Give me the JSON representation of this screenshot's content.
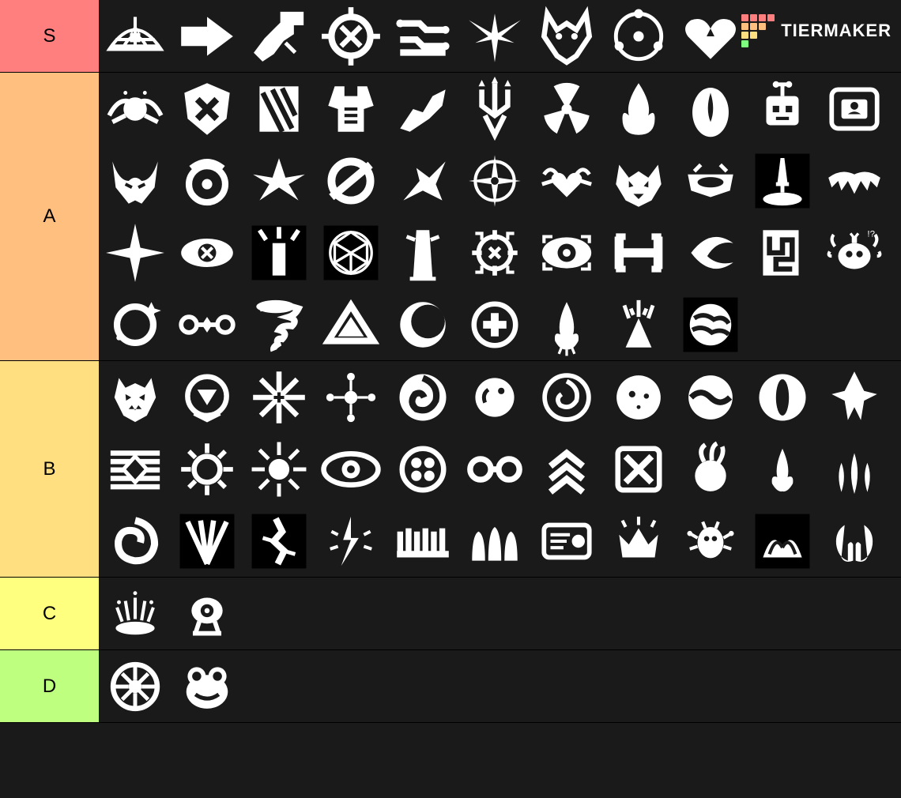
{
  "watermark": {
    "text": "TIERMAKER"
  },
  "wm_colors": [
    "#ff7f7f",
    "#ff7f7f",
    "#ff7f7f",
    "#ff7f7f",
    "#ffbf7f",
    "#ffbf7f",
    "#ffbf7f",
    "#1a1a1a",
    "#ffdf7f",
    "#ffdf7f",
    "#1a1a1a",
    "#1a1a1a",
    "#7fff7f",
    "#1a1a1a",
    "#1a1a1a",
    "#1a1a1a"
  ],
  "tiers": [
    {
      "label": "S",
      "color": "#ff7f7f",
      "items": [
        "dome-lock",
        "arrow-right",
        "turret",
        "crosshair-x",
        "circuit",
        "winged-crest",
        "fox-mask",
        "orbit-node",
        "heart-spark"
      ]
    },
    {
      "label": "A",
      "color": "#ffbf7f",
      "items": [
        "winged-orb",
        "shield-x",
        "slash-panel",
        "torso-armor",
        "beast-leap",
        "trident-crest",
        "radiation",
        "flame",
        "oval-flame",
        "robot-head",
        "id-card",
        "horned-mask",
        "halo-ring",
        "wing-blade",
        "ring-slash",
        "shatter",
        "compass-star",
        "heart-wings",
        "demon-face",
        "visor",
        "sword-pool",
        "maw",
        "spark-star",
        "eye-x",
        "pillar-burst",
        "geo-sphere",
        "monolith",
        "target-x",
        "eye-shield",
        "bracket-line",
        "crescent-blade",
        "maze-block",
        "alarm-bot",
        "ring-sparkle",
        "link-diamond",
        "tornado",
        "triangle",
        "crescent-ring",
        "plus-circle",
        "flame-drop",
        "eruption",
        "globe-swirl"
      ]
    },
    {
      "label": "B",
      "color": "#ffdf7f",
      "items": [
        "oni-face",
        "down-triangle",
        "snowflake-plus",
        "dot-orbit",
        "swirl-dark",
        "orb-glow",
        "spiral-ring",
        "moon-face",
        "wave-circle",
        "eye-slit",
        "crest-point",
        "stripes-gem",
        "burst-ring",
        "sun-ray",
        "eye-wide",
        "quad-circle",
        "link-chain",
        "chevrons-up",
        "x-box",
        "fireball",
        "flame-small",
        "tri-flame",
        "swirl-ring",
        "beam-spread",
        "crack",
        "spark-bolt",
        "comb",
        "wave-pillars",
        "tech-panel",
        "crown-burst",
        "bug-signal",
        "wave-banner",
        "twin-heads"
      ]
    },
    {
      "label": "C",
      "color": "#ffff7f",
      "items": [
        "splash-sparkle",
        "camera-bot"
      ]
    },
    {
      "label": "D",
      "color": "#bfff7f",
      "items": [
        "wheel-x",
        "frog-face"
      ]
    }
  ],
  "item_bg": "#1a1a1a",
  "icon_color": "#ffffff"
}
